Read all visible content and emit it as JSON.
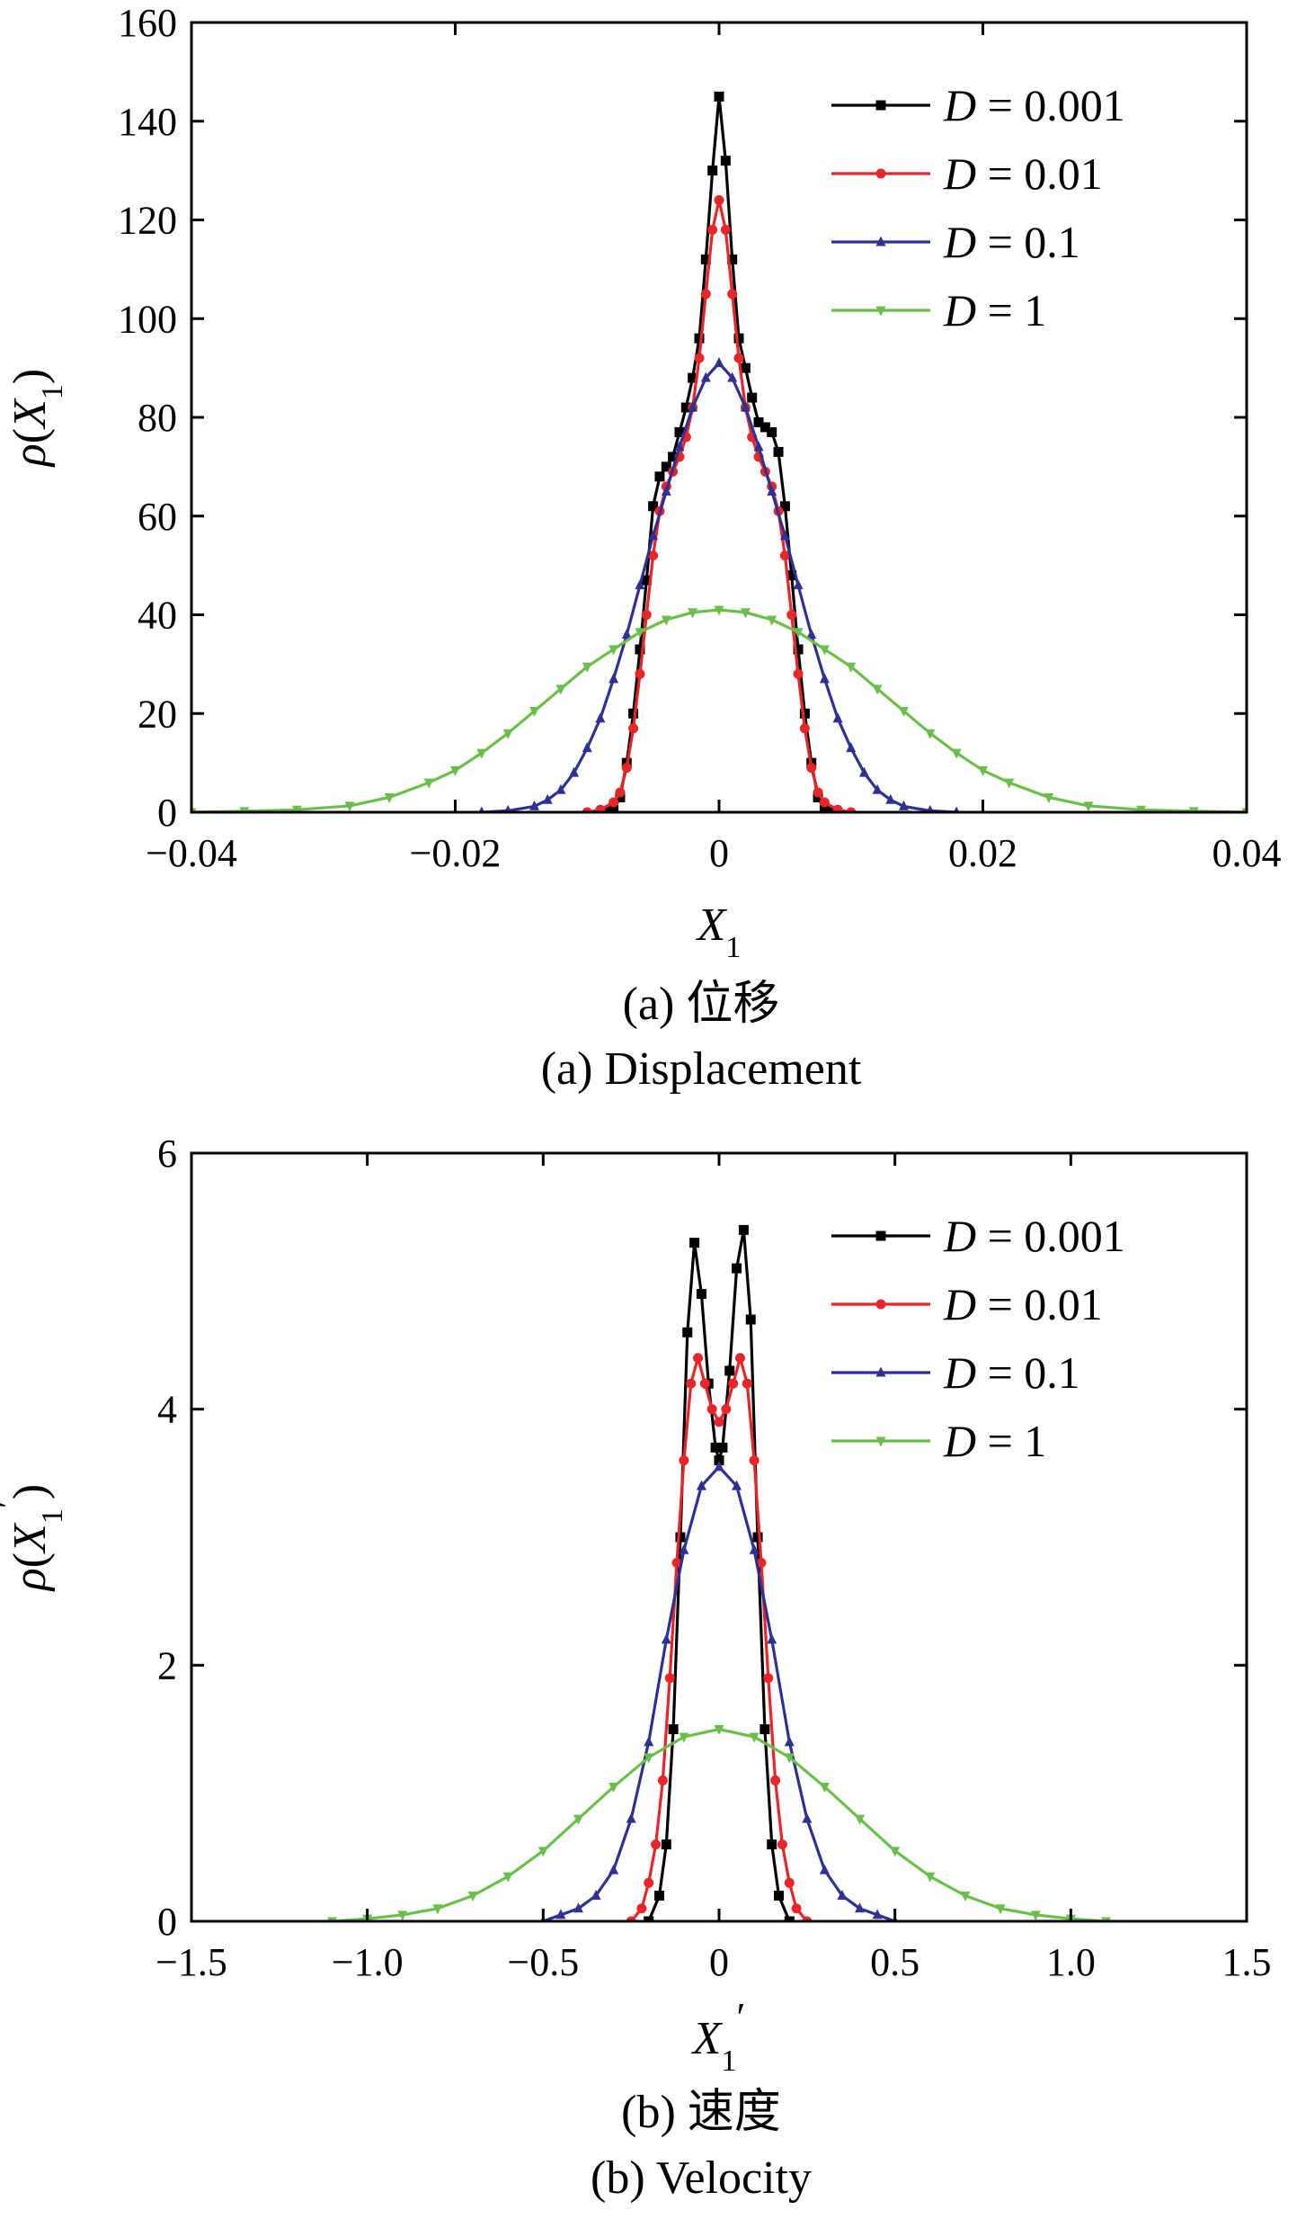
{
  "chart_data": [
    {
      "type": "line",
      "panel": "a",
      "caption_cn": "(a)  位移",
      "caption_en": "(a)  Displacement",
      "xlabel": "X1",
      "ylabel": "ρ(X1)",
      "xlim": [
        -0.04,
        0.04
      ],
      "ylim": [
        0,
        160
      ],
      "xticks": [
        -0.04,
        -0.02,
        0,
        0.02,
        0.04
      ],
      "xtick_labels": [
        "−0.04",
        "−0.02",
        "0",
        "0.02",
        "0.04"
      ],
      "yticks": [
        0,
        20,
        40,
        60,
        80,
        100,
        120,
        140,
        160
      ],
      "ytick_labels": [
        "0",
        "20",
        "40",
        "60",
        "80",
        "100",
        "120",
        "140",
        "160"
      ],
      "legend_position": "top-right",
      "series": [
        {
          "name": "D = 0.001",
          "color": "#000000",
          "marker": "square",
          "x": [
            -0.0085,
            -0.008,
            -0.0075,
            -0.007,
            -0.0065,
            -0.006,
            -0.0055,
            -0.005,
            -0.0045,
            -0.004,
            -0.0035,
            -0.003,
            -0.0025,
            -0.002,
            -0.0015,
            -0.001,
            -0.0005,
            0,
            0.0005,
            0.001,
            0.0015,
            0.002,
            0.0025,
            0.003,
            0.0035,
            0.004,
            0.0045,
            0.005,
            0.0055,
            0.006,
            0.0065,
            0.007,
            0.0075,
            0.008,
            0.0085
          ],
          "y": [
            0,
            0.5,
            3,
            10,
            20,
            33,
            47,
            62,
            68,
            70,
            72,
            77,
            82,
            88,
            96,
            112,
            130,
            145,
            132,
            112,
            96,
            90,
            84,
            79,
            78,
            77,
            73,
            62,
            48,
            33,
            20,
            10,
            3,
            0.5,
            0
          ]
        },
        {
          "name": "D = 0.01",
          "color": "#e8262a",
          "marker": "circle",
          "x": [
            -0.01,
            -0.009,
            -0.008,
            -0.0075,
            -0.007,
            -0.0065,
            -0.006,
            -0.0055,
            -0.005,
            -0.0045,
            -0.004,
            -0.0035,
            -0.003,
            -0.0025,
            -0.002,
            -0.0015,
            -0.001,
            -0.0005,
            0,
            0.0005,
            0.001,
            0.0015,
            0.002,
            0.0025,
            0.003,
            0.0035,
            0.004,
            0.0045,
            0.005,
            0.0055,
            0.006,
            0.0065,
            0.007,
            0.0075,
            0.008,
            0.009,
            0.01
          ],
          "y": [
            0,
            0.5,
            2,
            4,
            9,
            17,
            28,
            40,
            52,
            61,
            66,
            69,
            72,
            76,
            82,
            92,
            105,
            118,
            124,
            118,
            105,
            92,
            82,
            76,
            72,
            69,
            66,
            61,
            52,
            40,
            28,
            17,
            9,
            4,
            2,
            0.5,
            0
          ]
        },
        {
          "name": "D = 0.1",
          "color": "#2e3192",
          "marker": "triangle-up",
          "x": [
            -0.018,
            -0.016,
            -0.014,
            -0.013,
            -0.012,
            -0.011,
            -0.01,
            -0.009,
            -0.008,
            -0.007,
            -0.006,
            -0.005,
            -0.004,
            -0.003,
            -0.002,
            -0.001,
            0,
            0.001,
            0.002,
            0.003,
            0.004,
            0.005,
            0.006,
            0.007,
            0.008,
            0.009,
            0.01,
            0.011,
            0.012,
            0.013,
            0.014,
            0.016,
            0.018
          ],
          "y": [
            0,
            0.3,
            1.2,
            2.5,
            4.5,
            8,
            13,
            19,
            27,
            36,
            46,
            56,
            65,
            74,
            82,
            88,
            91,
            88,
            82,
            74,
            65,
            56,
            46,
            36,
            27,
            19,
            13,
            8,
            4.5,
            2.5,
            1.2,
            0.3,
            0
          ]
        },
        {
          "name": "D = 1",
          "color": "#6abf4b",
          "marker": "triangle-down",
          "x": [
            -0.04,
            -0.036,
            -0.032,
            -0.028,
            -0.025,
            -0.022,
            -0.02,
            -0.018,
            -0.016,
            -0.014,
            -0.012,
            -0.01,
            -0.008,
            -0.006,
            -0.004,
            -0.002,
            0,
            0.002,
            0.004,
            0.006,
            0.008,
            0.01,
            0.012,
            0.014,
            0.016,
            0.018,
            0.02,
            0.022,
            0.025,
            0.028,
            0.032,
            0.036,
            0.04
          ],
          "y": [
            0,
            0.2,
            0.5,
            1.3,
            3,
            6,
            8.5,
            12,
            16,
            20.5,
            25,
            29.5,
            33,
            36.5,
            39,
            40.5,
            41,
            40.5,
            39,
            36.5,
            33,
            29.5,
            25,
            20.5,
            16,
            12,
            8.5,
            6,
            3,
            1.3,
            0.5,
            0.2,
            0
          ]
        }
      ]
    },
    {
      "type": "line",
      "panel": "b",
      "caption_cn": "(b)  速度",
      "caption_en": "(b)  Velocity",
      "xlabel": "X1′",
      "ylabel": "ρ(X1′)",
      "xlim": [
        -1.5,
        1.5
      ],
      "ylim": [
        0,
        6
      ],
      "xticks": [
        -1.5,
        -1.0,
        -0.5,
        0,
        0.5,
        1.0,
        1.5
      ],
      "xtick_labels": [
        "−1.5",
        "−1.0",
        "−0.5",
        "0",
        "0.5",
        "1.0",
        "1.5"
      ],
      "yticks": [
        0,
        2,
        4,
        6
      ],
      "ytick_labels": [
        "0",
        "2",
        "4",
        "6"
      ],
      "legend_position": "top-right",
      "series": [
        {
          "name": "D = 0.001",
          "color": "#000000",
          "marker": "square",
          "x": [
            -0.2,
            -0.17,
            -0.15,
            -0.13,
            -0.11,
            -0.09,
            -0.07,
            -0.05,
            -0.03,
            -0.01,
            0,
            0.01,
            0.03,
            0.05,
            0.07,
            0.09,
            0.11,
            0.13,
            0.15,
            0.17,
            0.2
          ],
          "y": [
            0,
            0.2,
            0.6,
            1.5,
            3,
            4.6,
            5.3,
            4.9,
            4.2,
            3.7,
            3.6,
            3.7,
            4.3,
            5.1,
            5.4,
            4.7,
            3,
            1.5,
            0.6,
            0.2,
            0
          ]
        },
        {
          "name": "D = 0.01",
          "color": "#e8262a",
          "marker": "circle",
          "x": [
            -0.25,
            -0.22,
            -0.2,
            -0.18,
            -0.16,
            -0.14,
            -0.12,
            -0.1,
            -0.08,
            -0.06,
            -0.04,
            -0.02,
            0,
            0.02,
            0.04,
            0.06,
            0.08,
            0.1,
            0.12,
            0.14,
            0.16,
            0.18,
            0.2,
            0.22,
            0.25
          ],
          "y": [
            0,
            0.1,
            0.3,
            0.6,
            1.1,
            1.9,
            2.8,
            3.6,
            4.2,
            4.4,
            4.2,
            4.0,
            3.9,
            4.0,
            4.2,
            4.4,
            4.2,
            3.6,
            2.8,
            1.9,
            1.1,
            0.6,
            0.3,
            0.1,
            0
          ]
        },
        {
          "name": "D = 0.1",
          "color": "#2e3192",
          "marker": "triangle-up",
          "x": [
            -0.5,
            -0.45,
            -0.4,
            -0.35,
            -0.3,
            -0.25,
            -0.2,
            -0.15,
            -0.1,
            -0.05,
            0,
            0.05,
            0.1,
            0.15,
            0.2,
            0.25,
            0.3,
            0.35,
            0.4,
            0.45,
            0.5
          ],
          "y": [
            0,
            0.05,
            0.1,
            0.2,
            0.4,
            0.8,
            1.4,
            2.2,
            2.9,
            3.4,
            3.55,
            3.4,
            2.9,
            2.2,
            1.4,
            0.8,
            0.4,
            0.2,
            0.1,
            0.05,
            0
          ]
        },
        {
          "name": "D = 1",
          "color": "#6abf4b",
          "marker": "triangle-down",
          "x": [
            -1.1,
            -1.0,
            -0.9,
            -0.8,
            -0.7,
            -0.6,
            -0.5,
            -0.4,
            -0.3,
            -0.2,
            -0.1,
            0,
            0.1,
            0.2,
            0.3,
            0.4,
            0.5,
            0.6,
            0.7,
            0.8,
            0.9,
            1.0,
            1.1
          ],
          "y": [
            0,
            0.02,
            0.05,
            0.1,
            0.2,
            0.35,
            0.55,
            0.8,
            1.05,
            1.28,
            1.44,
            1.5,
            1.44,
            1.28,
            1.05,
            0.8,
            0.55,
            0.35,
            0.2,
            0.1,
            0.05,
            0.02,
            0
          ]
        }
      ]
    }
  ]
}
